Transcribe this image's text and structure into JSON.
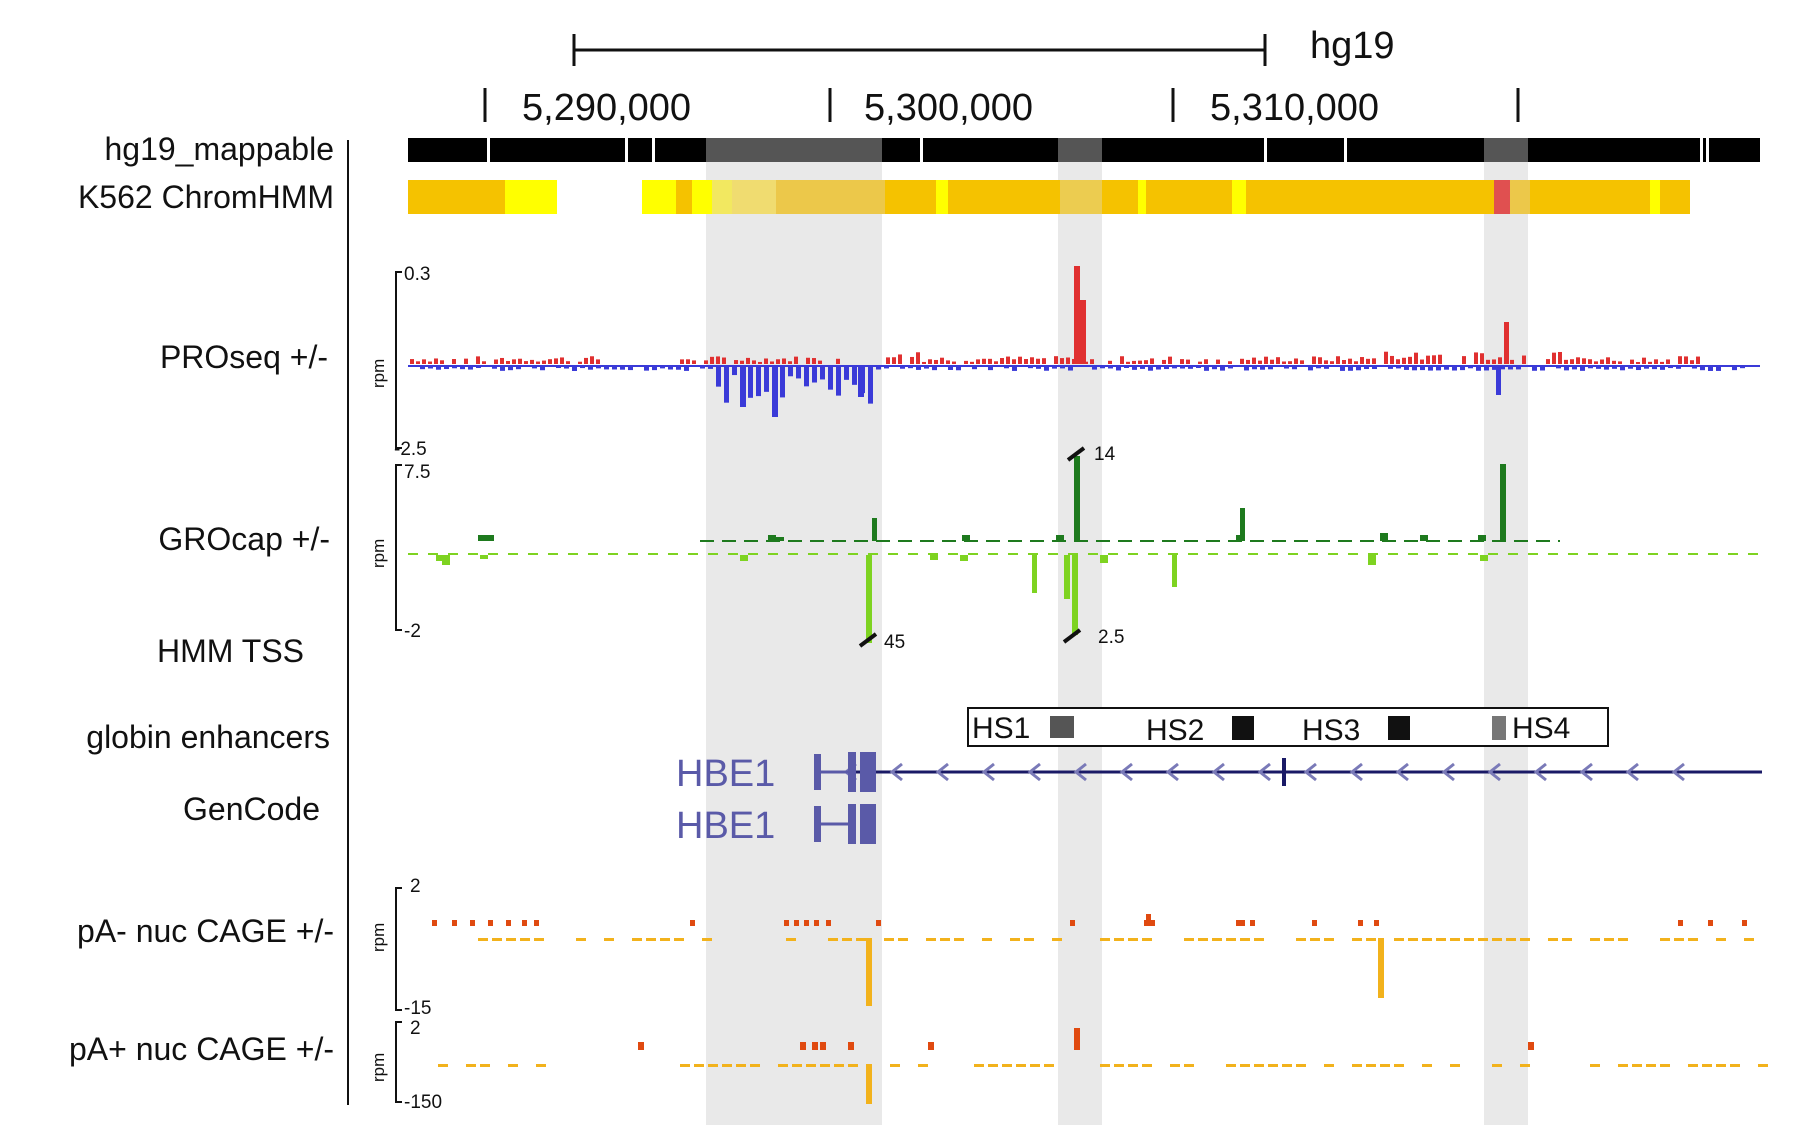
{
  "assembly": "hg19",
  "coordinates": [
    "5,290,000",
    "5,300,000",
    "5,310,000"
  ],
  "track_labels": {
    "mappable": "hg19_mappable",
    "chromhmm": "K562 ChromHMM",
    "proseq": "PROseq +/-",
    "grocap": "GROcap +/-",
    "hmm_tss": "HMM TSS",
    "enhancers": "globin enhancers",
    "gencode": "GenCode",
    "pa_minus": "pA- nuc CAGE +/-",
    "pa_plus": "pA+ nuc CAGE +/-"
  },
  "unit": "rpm",
  "proseq_scale": {
    "max": "0.3",
    "min": "-2.5"
  },
  "grocap_scale": {
    "max": "7.5",
    "min": "-2",
    "clip_top": "14",
    "clip_bottom_1": "45",
    "clip_bottom_2": "2.5"
  },
  "pa_minus_scale": {
    "max": "2",
    "min": "-15"
  },
  "pa_plus_scale": {
    "max": "2",
    "min": "-150"
  },
  "enhancers": [
    "HS1",
    "HS2",
    "HS3",
    "HS4"
  ],
  "genes": [
    "HBE1",
    "HBE1"
  ],
  "colors": {
    "proseq_plus": "#e03030",
    "proseq_minus": "#3a3ad8",
    "grocap_plus": "#1e7a1e",
    "grocap_minus": "#7ed321",
    "cage_plus": "#e04a10",
    "cage_minus": "#f2b21c",
    "chromhmm_main": "#f5c200",
    "chromhmm_alt": "#ffff00",
    "highlight": "#e8e8e8",
    "gene": "#5a5aa8"
  }
}
